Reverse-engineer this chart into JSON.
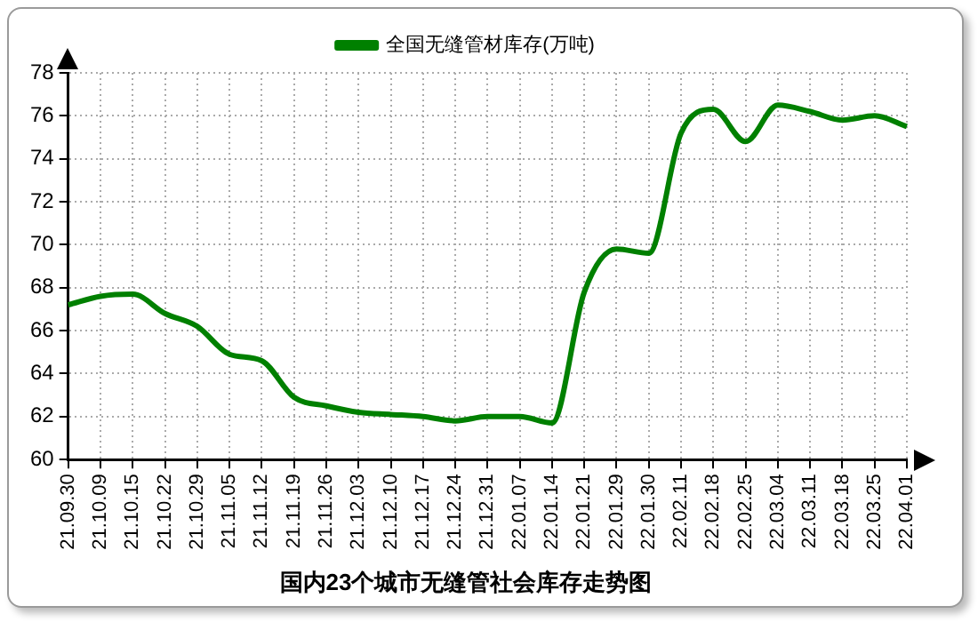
{
  "chart_data": {
    "type": "line",
    "title": "国内23个城市无缝管社会库存走势图",
    "categories": [
      "21.09.30",
      "21.10.09",
      "21.10.15",
      "21.10.22",
      "21.10.29",
      "21.11.05",
      "21.11.12",
      "21.11.19",
      "21.11.26",
      "21.12.03",
      "21.12.10",
      "21.12.17",
      "21.12.24",
      "21.12.31",
      "22.01.07",
      "22.01.14",
      "22.01.21",
      "22.01.29",
      "22.01.30",
      "22.02.11",
      "22.02.18",
      "22.02.25",
      "22.03.04",
      "22.03.11",
      "22.03.18",
      "22.03.25",
      "22.04.01"
    ],
    "series": [
      {
        "name": "全国无缝管材库存(万吨)",
        "color": "#008000",
        "values": [
          67.2,
          67.6,
          67.7,
          66.8,
          66.2,
          64.9,
          64.6,
          62.9,
          62.5,
          62.2,
          62.1,
          62.0,
          61.8,
          62.0,
          62.0,
          61.7,
          67.8,
          69.8,
          69.6,
          75.2,
          76.3,
          74.8,
          76.5,
          76.2,
          75.8,
          76.0,
          75.5
        ]
      }
    ],
    "ylim": [
      60,
      78
    ],
    "yticks": [
      60,
      62,
      64,
      66,
      68,
      70,
      72,
      74,
      76,
      78
    ],
    "grid": true,
    "legend": "top",
    "marker": "none",
    "line_style": "solid"
  }
}
